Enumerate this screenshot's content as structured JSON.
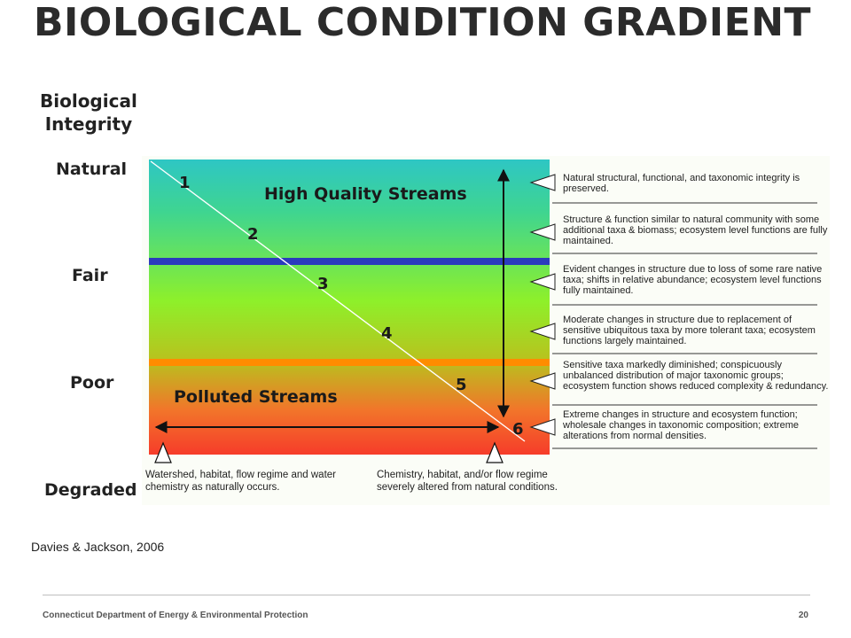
{
  "slide": {
    "title": "BIOLOGICAL CONDITION GRADIENT",
    "citation": "Davies & Jackson, 2006",
    "footer_org": "Connecticut Department of Energy & Environmental Protection",
    "page_number": "20"
  },
  "axis": {
    "title_line1": "Biological",
    "title_line2": "Integrity",
    "levels": [
      "Natural",
      "Fair",
      "Poor",
      "Degraded"
    ]
  },
  "diagram": {
    "high_quality_label": "High Quality Streams",
    "polluted_label": "Polluted Streams",
    "tier_numbers": [
      "1",
      "2",
      "3",
      "4",
      "5",
      "6"
    ],
    "colors": {
      "top": "#2ec6c4",
      "middle": "#8ef02a",
      "bottom": "#f63c2a",
      "fair_line": "#2b3bbd",
      "poor_line": "#ff8c00"
    },
    "descriptions": [
      "Natural structural, functional, and taxonomic integrity is preserved.",
      "Structure & function similar to natural community with some additional taxa & biomass; ecosystem level functions are fully maintained.",
      "Evident changes in structure due to loss of some rare native taxa; shifts in relative abundance; ecosystem level functions fully maintained.",
      "Moderate changes in structure due to replacement of sensitive ubiquitous taxa by more tolerant taxa; ecosystem functions largely maintained.",
      "Sensitive taxa markedly diminished; conspicuously unbalanced distribution of major taxonomic groups; ecosystem function shows reduced complexity & redundancy.",
      "Extreme changes in structure and ecosystem function; wholesale changes in taxonomic composition; extreme alterations from normal densities."
    ],
    "left_note": "Watershed, habitat, flow regime and water chemistry as naturally occurs.",
    "right_note": "Chemistry, habitat, and/or flow regime severely altered from natural conditions."
  }
}
